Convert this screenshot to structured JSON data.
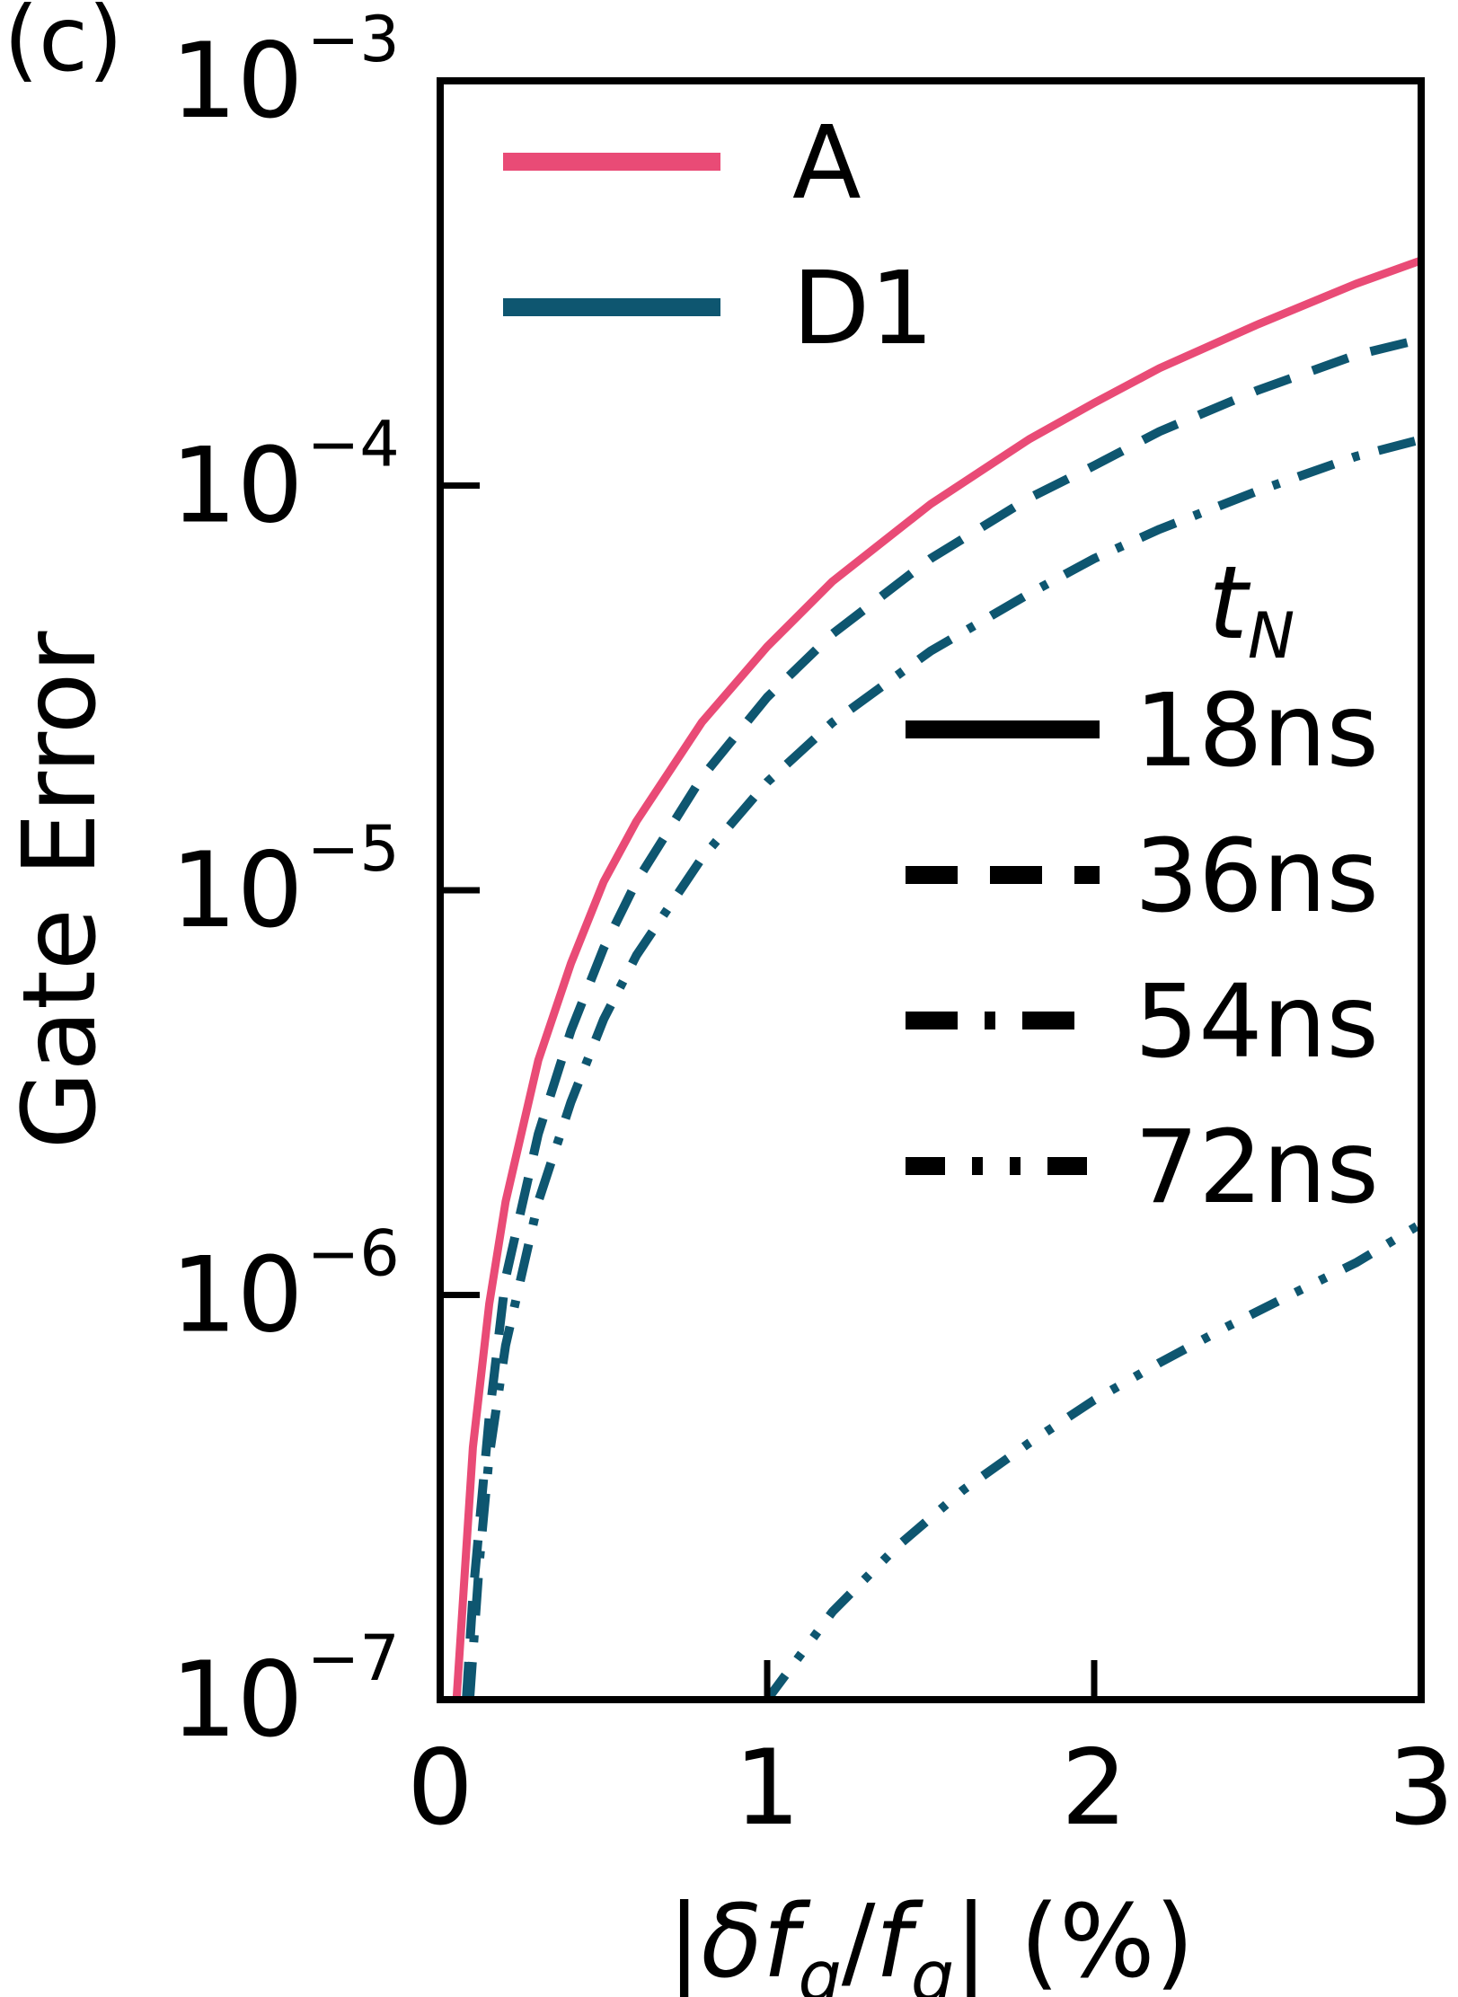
{
  "panel_label": "(c)",
  "chart_data": {
    "type": "line",
    "xlabel": "|δf_q/f_q| (%)",
    "ylabel": "Gate Error",
    "xlim": [
      0,
      3
    ],
    "ylim": [
      1e-07,
      0.001
    ],
    "yscale": "log",
    "x_ticks": [
      {
        "value": 0,
        "label": "0"
      },
      {
        "value": 1,
        "label": "1"
      },
      {
        "value": 2,
        "label": "2"
      },
      {
        "value": 3,
        "label": "3"
      }
    ],
    "y_ticks": [
      {
        "value": 1e-07,
        "base": "10",
        "exp": "−7"
      },
      {
        "value": 1e-06,
        "base": "10",
        "exp": "−6"
      },
      {
        "value": 1e-05,
        "base": "10",
        "exp": "−5"
      },
      {
        "value": 0.0001,
        "base": "10",
        "exp": "−4"
      },
      {
        "value": 0.001,
        "base": "10",
        "exp": "−3"
      }
    ],
    "grid": false,
    "colors": {
      "A": "#e94b76",
      "D1": "#0e5670"
    },
    "legend_scheme": {
      "placement": "top-left",
      "entries": [
        {
          "label": "A",
          "color": "#e94b76"
        },
        {
          "label": "D1",
          "color": "#0e5670"
        }
      ]
    },
    "legend_time": {
      "title": "t_N",
      "placement": "center-right",
      "entries": [
        {
          "label": "18ns",
          "style": "solid"
        },
        {
          "label": "36ns",
          "style": "dashed"
        },
        {
          "label": "54ns",
          "style": "dashdot"
        },
        {
          "label": "72ns",
          "style": "dashdotdot"
        }
      ]
    },
    "series": [
      {
        "scheme": "A",
        "tN": "18ns",
        "style": "solid",
        "x": [
          0.05,
          0.1,
          0.15,
          0.2,
          0.3,
          0.4,
          0.5,
          0.6,
          0.8,
          1.0,
          1.2,
          1.5,
          1.8,
          2.0,
          2.2,
          2.5,
          2.8,
          3.0
        ],
        "y": [
          1e-07,
          4.2e-07,
          9.5e-07,
          1.7e-06,
          3.8e-06,
          6.6e-06,
          1.05e-05,
          1.48e-05,
          2.6e-05,
          4e-05,
          5.8e-05,
          9e-05,
          0.00013,
          0.00016,
          0.000195,
          0.00025,
          0.000315,
          0.00036
        ]
      },
      {
        "scheme": "D1",
        "tN": "36ns",
        "style": "dashed",
        "x": [
          0.08,
          0.1,
          0.15,
          0.2,
          0.3,
          0.4,
          0.5,
          0.6,
          0.8,
          1.0,
          1.2,
          1.5,
          1.8,
          2.0,
          2.2,
          2.5,
          2.8,
          3.0
        ],
        "y": [
          1e-07,
          1.8e-07,
          5e-07,
          1.1e-06,
          2.5e-06,
          4.5e-06,
          7.2e-06,
          1.05e-05,
          1.9e-05,
          3e-05,
          4.3e-05,
          6.6e-05,
          9.3e-05,
          0.000112,
          0.000136,
          0.000172,
          0.00021,
          0.00023
        ]
      },
      {
        "scheme": "D1",
        "tN": "54ns",
        "style": "dashdot",
        "x": [
          0.09,
          0.12,
          0.15,
          0.2,
          0.3,
          0.4,
          0.5,
          0.6,
          0.8,
          1.0,
          1.2,
          1.5,
          1.8,
          2.0,
          2.2,
          2.5,
          2.8,
          3.0
        ],
        "y": [
          1e-07,
          2.2e-07,
          4e-07,
          7.5e-07,
          1.7e-06,
          3e-06,
          4.8e-06,
          6.9e-06,
          1.2e-05,
          1.85e-05,
          2.6e-05,
          3.9e-05,
          5.4e-05,
          6.6e-05,
          7.8e-05,
          9.7e-05,
          0.000118,
          0.00013
        ]
      },
      {
        "scheme": "D1",
        "tN": "72ns",
        "style": "dashdotdot",
        "x": [
          1.0,
          1.2,
          1.4,
          1.6,
          1.8,
          2.0,
          2.2,
          2.4,
          2.6,
          2.8,
          3.0
        ],
        "y": [
          1e-07,
          1.65e-07,
          2.4e-07,
          3.3e-07,
          4.3e-07,
          5.5e-07,
          6.8e-07,
          8.3e-07,
          1e-06,
          1.2e-06,
          1.5e-06
        ]
      }
    ]
  }
}
